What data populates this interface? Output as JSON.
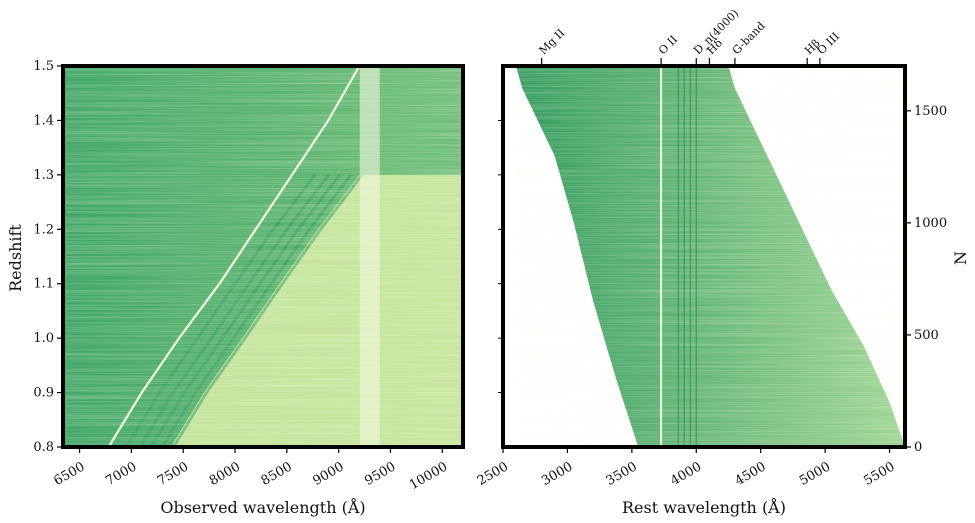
{
  "chart_data": [
    {
      "type": "heatmap",
      "xlabel": "Observed wavelength (Å)",
      "ylabel": "Redshift",
      "x_ticks": [
        6500,
        7000,
        7500,
        8000,
        8500,
        9000,
        9500,
        10000
      ],
      "y_ticks": [
        0.8,
        0.9,
        1.0,
        1.1,
        1.2,
        1.3,
        1.4,
        1.5
      ],
      "xlim": [
        6340,
        10200
      ],
      "ylim": [
        0.8,
        1.5
      ],
      "colormap": [
        "#f4fbc8",
        "#d4eea4",
        "#8fd08c",
        "#3fa665",
        "#1c7f45"
      ],
      "features": {
        "emission_ridge": [
          [
            6780,
            0.8
          ],
          [
            7100,
            0.9
          ],
          [
            7460,
            1.0
          ],
          [
            7850,
            1.1
          ],
          [
            8200,
            1.2
          ],
          [
            8550,
            1.3
          ],
          [
            8900,
            1.4
          ],
          [
            9200,
            1.5
          ]
        ],
        "absorption_bands_at_z": [
          [
            7380,
            0.8
          ],
          [
            7700,
            0.9
          ],
          [
            8070,
            1.0
          ],
          [
            8430,
            1.1
          ],
          [
            8800,
            1.2
          ],
          [
            9200,
            1.3
          ]
        ],
        "sky_line_wavelength": 9300
      }
    },
    {
      "type": "heatmap",
      "xlabel": "Rest wavelength (Å)",
      "y2label": "N",
      "x_ticks": [
        2500,
        3000,
        3500,
        4000,
        4500,
        5000,
        5500
      ],
      "y_ticks": [
        0,
        500,
        1000,
        1500
      ],
      "xlim": [
        2500,
        5620
      ],
      "ylim": [
        0,
        1700
      ],
      "colormap": [
        "#f4fbc8",
        "#d4eea4",
        "#8fd08c",
        "#3fa665",
        "#1c7f45"
      ],
      "coverage_left_edge": [
        [
          3550,
          0
        ],
        [
          3380,
          300
        ],
        [
          3200,
          650
        ],
        [
          3050,
          1000
        ],
        [
          2900,
          1300
        ],
        [
          2650,
          1600
        ],
        [
          2600,
          1700
        ]
      ],
      "coverage_right_edge": [
        [
          5620,
          0
        ],
        [
          5500,
          200
        ],
        [
          5300,
          450
        ],
        [
          5050,
          700
        ],
        [
          4800,
          1000
        ],
        [
          4550,
          1300
        ],
        [
          4300,
          1600
        ],
        [
          4250,
          1700
        ]
      ],
      "spectral_lines": [
        {
          "name": "Mg II",
          "wavelength": 2800
        },
        {
          "name": "O II",
          "wavelength": 3727
        },
        {
          "name": "D_n(4000)",
          "wavelength": 4000
        },
        {
          "name": "Hδ",
          "wavelength": 4102
        },
        {
          "name": "G-band",
          "wavelength": 4300
        },
        {
          "name": "Hβ",
          "wavelength": 4861
        },
        {
          "name": "O III",
          "wavelength": 4959
        }
      ]
    }
  ]
}
